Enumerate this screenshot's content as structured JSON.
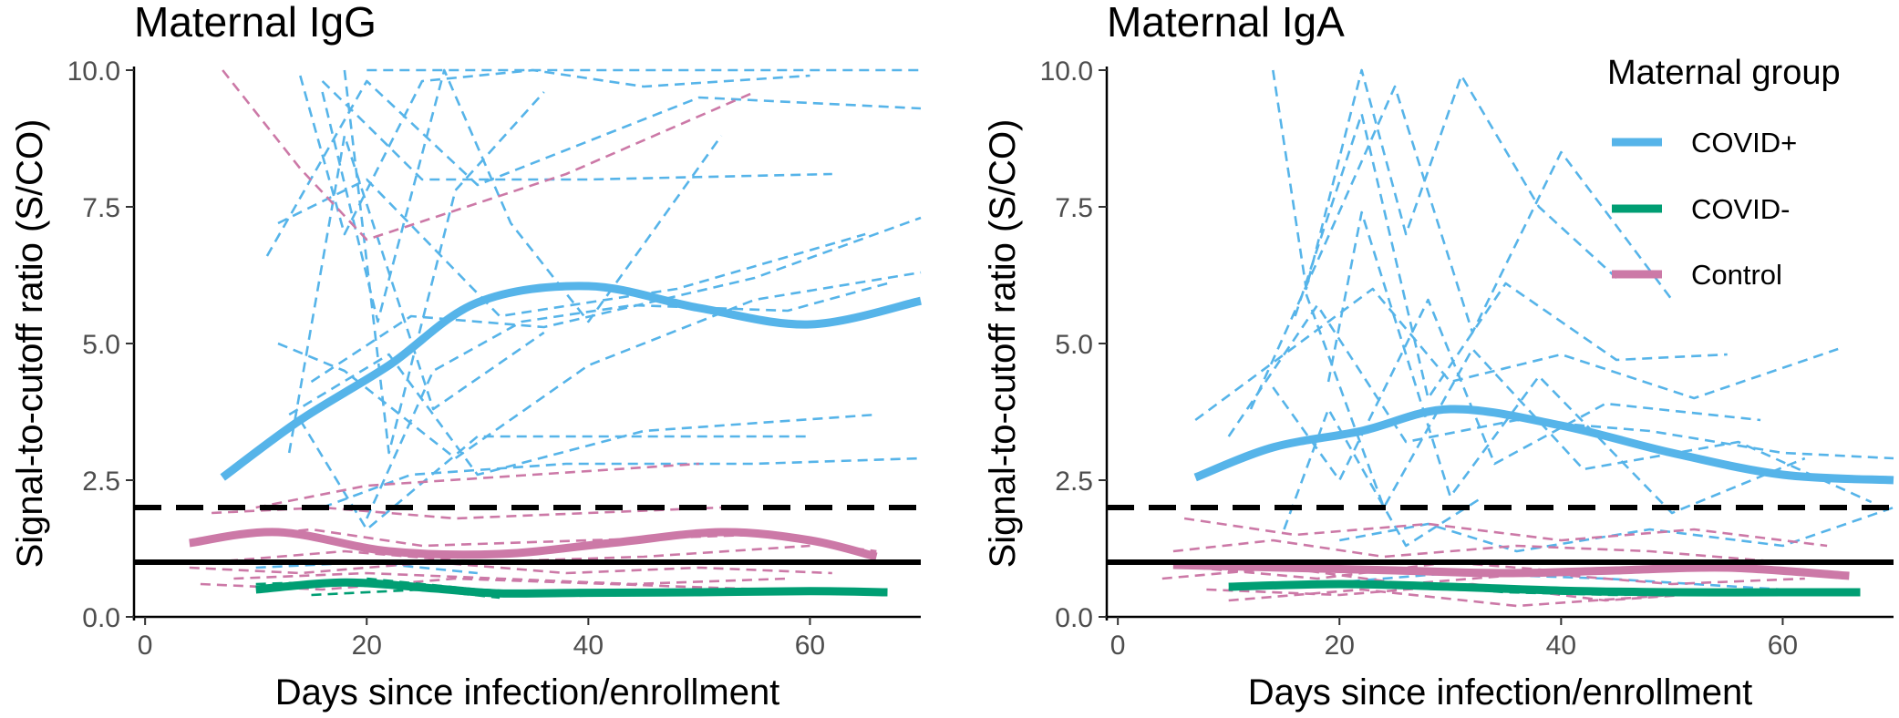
{
  "colors": {
    "covid_pos": "#56B4E9",
    "covid_neg": "#009E73",
    "control": "#CC79A7",
    "reference": "#000000",
    "axis_text": "#4d4d4d"
  },
  "legend": {
    "title": "Maternal group",
    "entries": [
      {
        "label": "COVID+",
        "color": "#56B4E9"
      },
      {
        "label": "COVID-",
        "color": "#009E73"
      },
      {
        "label": "Control",
        "color": "#CC79A7"
      }
    ]
  },
  "chart_data": [
    {
      "type": "line",
      "title": "Maternal IgG",
      "xlabel": "Days since infection/enrollment",
      "ylabel": "Signal-to-cutoff ratio (S/CO)",
      "xlim": [
        -1,
        70
      ],
      "ylim": [
        0,
        10
      ],
      "xticks": [
        0,
        20,
        40,
        60
      ],
      "yticks": [
        0.0,
        2.5,
        5.0,
        7.5,
        10.0
      ],
      "ytick_labels": [
        "0.0",
        "2.5",
        "5.0",
        "7.5",
        "10.0"
      ],
      "reference_lines": [
        {
          "y": 2.0,
          "style": "dashed",
          "color": "#000000"
        },
        {
          "y": 1.0,
          "style": "solid",
          "color": "#000000"
        }
      ],
      "smooth": [
        {
          "group": "COVID+",
          "color": "#56B4E9",
          "x": [
            7,
            14,
            22,
            30,
            40,
            50,
            60,
            70
          ],
          "y": [
            2.55,
            3.6,
            4.6,
            5.75,
            6.05,
            5.65,
            5.35,
            5.78
          ]
        },
        {
          "group": "Control",
          "color": "#CC79A7",
          "x": [
            4,
            12,
            22,
            32,
            42,
            52,
            60,
            66
          ],
          "y": [
            1.35,
            1.55,
            1.2,
            1.15,
            1.35,
            1.55,
            1.4,
            1.1
          ]
        },
        {
          "group": "COVID-",
          "color": "#009E73",
          "x": [
            10,
            18,
            26,
            32,
            40,
            50,
            60,
            67
          ],
          "y": [
            0.5,
            0.63,
            0.52,
            0.43,
            0.44,
            0.45,
            0.47,
            0.45
          ]
        }
      ],
      "individual": [
        {
          "group": "COVID+",
          "color": "#56B4E9",
          "x": [
            20,
            70
          ],
          "y": [
            10.0,
            10.0
          ]
        },
        {
          "group": "COVID+",
          "color": "#56B4E9",
          "x": [
            14,
            18,
            25,
            35,
            45,
            60
          ],
          "y": [
            9.9,
            7.0,
            9.8,
            10.0,
            9.7,
            9.9
          ]
        },
        {
          "group": "COVID+",
          "color": "#56B4E9",
          "x": [
            11,
            20,
            30,
            50,
            70
          ],
          "y": [
            6.6,
            9.8,
            7.9,
            9.5,
            9.3
          ]
        },
        {
          "group": "COVID+",
          "color": "#56B4E9",
          "x": [
            16,
            25,
            40,
            62
          ],
          "y": [
            9.8,
            8.0,
            8.0,
            8.1
          ]
        },
        {
          "group": "COVID+",
          "color": "#56B4E9",
          "x": [
            12,
            20,
            32,
            48,
            65
          ],
          "y": [
            7.2,
            8.0,
            5.5,
            6.0,
            7.0
          ]
        },
        {
          "group": "COVID+",
          "color": "#56B4E9",
          "x": [
            15,
            24,
            36,
            55,
            70
          ],
          "y": [
            4.3,
            5.5,
            5.3,
            6.2,
            7.3
          ]
        },
        {
          "group": "COVID+",
          "color": "#56B4E9",
          "x": [
            12,
            18,
            28,
            40,
            55,
            70
          ],
          "y": [
            5.0,
            4.5,
            2.9,
            4.6,
            5.8,
            6.3
          ]
        },
        {
          "group": "COVID+",
          "color": "#56B4E9",
          "x": [
            13,
            22,
            30,
            45,
            66
          ],
          "y": [
            3.7,
            4.8,
            2.6,
            3.4,
            3.7
          ]
        },
        {
          "group": "COVID+",
          "color": "#56B4E9",
          "x": [
            14,
            20,
            30,
            42,
            60
          ],
          "y": [
            3.6,
            1.6,
            3.3,
            3.3,
            3.3
          ]
        },
        {
          "group": "COVID+",
          "color": "#56B4E9",
          "x": [
            16,
            24,
            38,
            55,
            70
          ],
          "y": [
            2.0,
            2.6,
            2.8,
            2.8,
            2.9
          ]
        },
        {
          "group": "COVID+",
          "color": "#56B4E9",
          "x": [
            18,
            22,
            28,
            36
          ],
          "y": [
            10.0,
            3.0,
            7.8,
            9.6
          ]
        },
        {
          "group": "COVID+",
          "color": "#56B4E9",
          "x": [
            16,
            21,
            27,
            33,
            40,
            52
          ],
          "y": [
            9.6,
            5.4,
            10.0,
            7.2,
            5.4,
            8.8
          ]
        },
        {
          "group": "COVID+",
          "color": "#56B4E9",
          "x": [
            20,
            26,
            34,
            44,
            58,
            67
          ],
          "y": [
            1.8,
            4.5,
            5.4,
            5.7,
            5.6,
            6.1
          ]
        },
        {
          "group": "COVID+",
          "color": "#56B4E9",
          "x": [
            13,
            18,
            26,
            36
          ],
          "y": [
            3.0,
            8.8,
            3.8,
            5.2
          ]
        },
        {
          "group": "COVID+",
          "color": "#56B4E9",
          "x": [
            10,
            20,
            30
          ],
          "y": [
            0.9,
            1.0,
            0.8
          ]
        },
        {
          "group": "Control",
          "color": "#CC79A7",
          "x": [
            7,
            14,
            20,
            38,
            55
          ],
          "y": [
            10.0,
            8.2,
            6.9,
            8.1,
            9.6
          ]
        },
        {
          "group": "Control",
          "color": "#CC79A7",
          "x": [
            10,
            20,
            35,
            50
          ],
          "y": [
            2.0,
            2.4,
            2.6,
            2.8
          ]
        },
        {
          "group": "Control",
          "color": "#CC79A7",
          "x": [
            6,
            16,
            28,
            40,
            52
          ],
          "y": [
            1.9,
            2.0,
            1.8,
            1.9,
            2.0
          ]
        },
        {
          "group": "Control",
          "color": "#CC79A7",
          "x": [
            5,
            15,
            25,
            40,
            55,
            66
          ],
          "y": [
            1.4,
            1.6,
            1.3,
            1.4,
            1.5,
            1.2
          ]
        },
        {
          "group": "Control",
          "color": "#CC79A7",
          "x": [
            6,
            18,
            30,
            45,
            60
          ],
          "y": [
            1.0,
            1.2,
            1.0,
            1.1,
            1.3
          ]
        },
        {
          "group": "Control",
          "color": "#CC79A7",
          "x": [
            4,
            14,
            26,
            38,
            50,
            62
          ],
          "y": [
            0.9,
            0.8,
            1.0,
            0.8,
            0.9,
            0.8
          ]
        },
        {
          "group": "Control",
          "color": "#CC79A7",
          "x": [
            8,
            20,
            32,
            44,
            58
          ],
          "y": [
            0.7,
            0.8,
            0.7,
            0.6,
            0.7
          ]
        },
        {
          "group": "Control",
          "color": "#CC79A7",
          "x": [
            5,
            16,
            28,
            42,
            56
          ],
          "y": [
            0.6,
            0.5,
            0.7,
            0.6,
            0.5
          ]
        },
        {
          "group": "COVID-",
          "color": "#009E73",
          "x": [
            10,
            18,
            26,
            34
          ],
          "y": [
            0.6,
            0.65,
            0.55,
            0.45
          ]
        },
        {
          "group": "COVID-",
          "color": "#009E73",
          "x": [
            20,
            30,
            40,
            50,
            60,
            67
          ],
          "y": [
            0.7,
            0.5,
            0.4,
            0.4,
            0.5,
            0.4
          ]
        },
        {
          "group": "COVID-",
          "color": "#009E73",
          "x": [
            15,
            25,
            32
          ],
          "y": [
            0.4,
            0.5,
            0.35
          ]
        }
      ]
    },
    {
      "type": "line",
      "title": "Maternal IgA",
      "xlabel": "Days since infection/enrollment",
      "ylabel": "Signal-to-cutoff ratio (S/CO)",
      "xlim": [
        -1,
        70
      ],
      "ylim": [
        0,
        10
      ],
      "xticks": [
        0,
        20,
        40,
        60
      ],
      "yticks": [
        0.0,
        2.5,
        5.0,
        7.5,
        10.0
      ],
      "ytick_labels": [
        "0.0",
        "2.5",
        "5.0",
        "7.5",
        "10.0"
      ],
      "reference_lines": [
        {
          "y": 2.0,
          "style": "dashed",
          "color": "#000000"
        },
        {
          "y": 1.0,
          "style": "solid",
          "color": "#000000"
        }
      ],
      "smooth": [
        {
          "group": "COVID+",
          "color": "#56B4E9",
          "x": [
            7,
            14,
            22,
            30,
            40,
            50,
            60,
            70
          ],
          "y": [
            2.55,
            3.1,
            3.4,
            3.8,
            3.5,
            3.0,
            2.6,
            2.5
          ]
        },
        {
          "group": "Control",
          "color": "#CC79A7",
          "x": [
            5,
            15,
            25,
            35,
            45,
            55,
            66
          ],
          "y": [
            0.95,
            0.9,
            0.85,
            0.8,
            0.85,
            0.9,
            0.75
          ]
        },
        {
          "group": "COVID-",
          "color": "#009E73",
          "x": [
            10,
            20,
            30,
            40,
            50,
            60,
            67
          ],
          "y": [
            0.55,
            0.6,
            0.55,
            0.48,
            0.45,
            0.45,
            0.45
          ]
        }
      ],
      "individual": [
        {
          "group": "COVID+",
          "color": "#56B4E9",
          "x": [
            14,
            17,
            22,
            26,
            31,
            38,
            45
          ],
          "y": [
            10.0,
            6.0,
            10.0,
            7.0,
            9.9,
            7.5,
            6.2
          ]
        },
        {
          "group": "COVID+",
          "color": "#56B4E9",
          "x": [
            12,
            18,
            25,
            32,
            40,
            50
          ],
          "y": [
            3.8,
            6.5,
            9.7,
            5.2,
            8.5,
            5.8
          ]
        },
        {
          "group": "COVID+",
          "color": "#56B4E9",
          "x": [
            16,
            22,
            28,
            35,
            45,
            55
          ],
          "y": [
            5.5,
            9.2,
            4.0,
            6.1,
            4.7,
            4.8
          ]
        },
        {
          "group": "COVID+",
          "color": "#56B4E9",
          "x": [
            7,
            15,
            23,
            30,
            40,
            52,
            65
          ],
          "y": [
            3.6,
            4.8,
            6.0,
            4.3,
            4.8,
            4.0,
            4.9
          ]
        },
        {
          "group": "COVID+",
          "color": "#56B4E9",
          "x": [
            10,
            18,
            26,
            36,
            48,
            60,
            70
          ],
          "y": [
            3.3,
            5.7,
            3.2,
            3.6,
            3.4,
            3.0,
            2.9
          ]
        },
        {
          "group": "COVID+",
          "color": "#56B4E9",
          "x": [
            14,
            20,
            28,
            34,
            44,
            58
          ],
          "y": [
            4.2,
            2.5,
            5.8,
            2.8,
            3.9,
            3.6
          ]
        },
        {
          "group": "COVID+",
          "color": "#56B4E9",
          "x": [
            17,
            24,
            32,
            42,
            56,
            68
          ],
          "y": [
            5.9,
            2.0,
            4.9,
            2.7,
            3.2,
            2.1
          ]
        },
        {
          "group": "COVID+",
          "color": "#56B4E9",
          "x": [
            19,
            22,
            30,
            38,
            50,
            62
          ],
          "y": [
            4.3,
            7.4,
            2.2,
            4.4,
            1.9,
            2.9
          ]
        },
        {
          "group": "COVID+",
          "color": "#56B4E9",
          "x": [
            15,
            19,
            26,
            33
          ],
          "y": [
            1.6,
            3.8,
            1.3,
            2.2
          ]
        },
        {
          "group": "COVID+",
          "color": "#56B4E9",
          "x": [
            20,
            28,
            36,
            48,
            60,
            70
          ],
          "y": [
            1.4,
            1.7,
            1.2,
            1.6,
            1.3,
            2.0
          ]
        },
        {
          "group": "COVID+",
          "color": "#56B4E9",
          "x": [
            18,
            30,
            44,
            60
          ],
          "y": [
            0.6,
            0.8,
            0.7,
            0.5
          ]
        },
        {
          "group": "Control",
          "color": "#CC79A7",
          "x": [
            6,
            16,
            28,
            40,
            52,
            64
          ],
          "y": [
            1.8,
            1.5,
            1.7,
            1.4,
            1.6,
            1.3
          ]
        },
        {
          "group": "Control",
          "color": "#CC79A7",
          "x": [
            5,
            14,
            24,
            36,
            48,
            60
          ],
          "y": [
            1.2,
            1.4,
            1.1,
            1.3,
            1.2,
            1.0
          ]
        },
        {
          "group": "Control",
          "color": "#CC79A7",
          "x": [
            7,
            18,
            30,
            42,
            56
          ],
          "y": [
            0.9,
            0.7,
            1.0,
            0.8,
            0.9
          ]
        },
        {
          "group": "Control",
          "color": "#CC79A7",
          "x": [
            4,
            15,
            26,
            38,
            50,
            62
          ],
          "y": [
            0.7,
            0.9,
            0.6,
            0.8,
            0.6,
            0.7
          ]
        },
        {
          "group": "Control",
          "color": "#CC79A7",
          "x": [
            8,
            20,
            32,
            44,
            58
          ],
          "y": [
            0.5,
            0.4,
            0.6,
            0.3,
            0.5
          ]
        },
        {
          "group": "Control",
          "color": "#CC79A7",
          "x": [
            10,
            22,
            36,
            50
          ],
          "y": [
            0.3,
            0.5,
            0.2,
            0.4
          ]
        },
        {
          "group": "COVID-",
          "color": "#009E73",
          "x": [
            10,
            20,
            30,
            40
          ],
          "y": [
            0.5,
            0.65,
            0.55,
            0.5
          ]
        },
        {
          "group": "COVID-",
          "color": "#009E73",
          "x": [
            25,
            35,
            45,
            55,
            67
          ],
          "y": [
            0.6,
            0.45,
            0.4,
            0.45,
            0.4
          ]
        }
      ]
    }
  ]
}
